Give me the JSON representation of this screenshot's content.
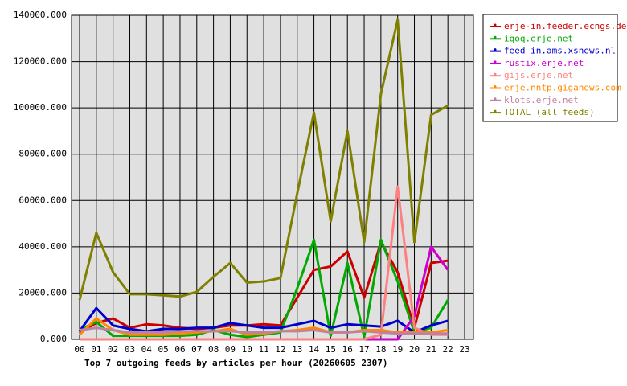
{
  "chart_data": {
    "type": "line",
    "title": "Top 7 outgoing feeds by articles per hour (20260605 2307)",
    "categories": [
      "00",
      "01",
      "02",
      "03",
      "04",
      "05",
      "06",
      "07",
      "08",
      "09",
      "10",
      "11",
      "12",
      "13",
      "14",
      "15",
      "16",
      "17",
      "18",
      "19",
      "20",
      "21",
      "22",
      "23"
    ],
    "ylim": [
      0,
      140000
    ],
    "yticks": [
      {
        "value": 0,
        "label": "0.000"
      },
      {
        "value": 20000,
        "label": "20000.000"
      },
      {
        "value": 40000,
        "label": "40000.000"
      },
      {
        "value": 60000,
        "label": "60000.000"
      },
      {
        "value": 80000,
        "label": "80000.000"
      },
      {
        "value": 100000,
        "label": "100000.000"
      },
      {
        "value": 120000,
        "label": "120000.000"
      },
      {
        "value": 140000,
        "label": "140000.000"
      }
    ],
    "grid": true,
    "legend": "right",
    "series": [
      {
        "name": "erje-in.feeder.ecngs.de",
        "color": "#cc0000",
        "values": [
          3000,
          7000,
          9000,
          5000,
          6500,
          6000,
          5000,
          4500,
          5000,
          6000,
          6000,
          6500,
          6000,
          18000,
          30000,
          31500,
          38000,
          18000,
          42000,
          29000,
          5000,
          33000,
          34000,
          null
        ]
      },
      {
        "name": "iqoq.erje.net",
        "color": "#00aa00",
        "values": [
          4000,
          7500,
          1500,
          1500,
          1500,
          1500,
          1500,
          2000,
          4000,
          2000,
          1000,
          2000,
          3000,
          22000,
          43000,
          1500,
          33000,
          1000,
          43000,
          25000,
          3000,
          5000,
          17000,
          null
        ]
      },
      {
        "name": "feed-in.ams.xsnews.nl",
        "color": "#0000cc",
        "values": [
          3500,
          13500,
          6000,
          4500,
          3500,
          4500,
          4500,
          5000,
          5000,
          7000,
          6000,
          5000,
          5000,
          6500,
          8000,
          5000,
          6500,
          6000,
          5500,
          8000,
          3000,
          6000,
          8000,
          null
        ]
      },
      {
        "name": "rustix.erje.net",
        "color": "#cc00cc",
        "values": [
          0,
          0,
          0,
          0,
          0,
          0,
          0,
          0,
          0,
          0,
          0,
          0,
          0,
          0,
          0,
          0,
          0,
          0,
          0,
          0,
          10000,
          40000,
          30000,
          null
        ]
      },
      {
        "name": "gijs.erje.net",
        "color": "#ff8080",
        "values": [
          0,
          0,
          0,
          0,
          0,
          0,
          0,
          0,
          0,
          0,
          0,
          0,
          0,
          0,
          0,
          0,
          0,
          0,
          2000,
          66000,
          5000,
          2000,
          2000,
          null
        ]
      },
      {
        "name": "erje.nntp.giganews.com",
        "color": "#ff8800",
        "values": [
          2000,
          9000,
          4000,
          2000,
          2000,
          2000,
          2500,
          3000,
          3500,
          4500,
          2000,
          2500,
          3500,
          4000,
          5000,
          3000,
          3000,
          4000,
          4000,
          3000,
          3000,
          3000,
          4000,
          null
        ]
      },
      {
        "name": "klots.erje.net",
        "color": "#c080a0",
        "values": [
          4000,
          5000,
          4000,
          3000,
          3000,
          3000,
          3500,
          3500,
          3500,
          3500,
          3000,
          3000,
          3500,
          3500,
          4000,
          3000,
          3000,
          3500,
          3000,
          2500,
          2500,
          2500,
          2500,
          null
        ]
      },
      {
        "name": "TOTAL (all feeds)",
        "color": "#808000",
        "values": [
          17000,
          46000,
          29000,
          19500,
          19500,
          19000,
          18500,
          20500,
          27000,
          33000,
          24500,
          25000,
          26500,
          63000,
          98000,
          51000,
          90000,
          42000,
          106000,
          138000,
          42000,
          97000,
          101000,
          null
        ]
      }
    ]
  }
}
